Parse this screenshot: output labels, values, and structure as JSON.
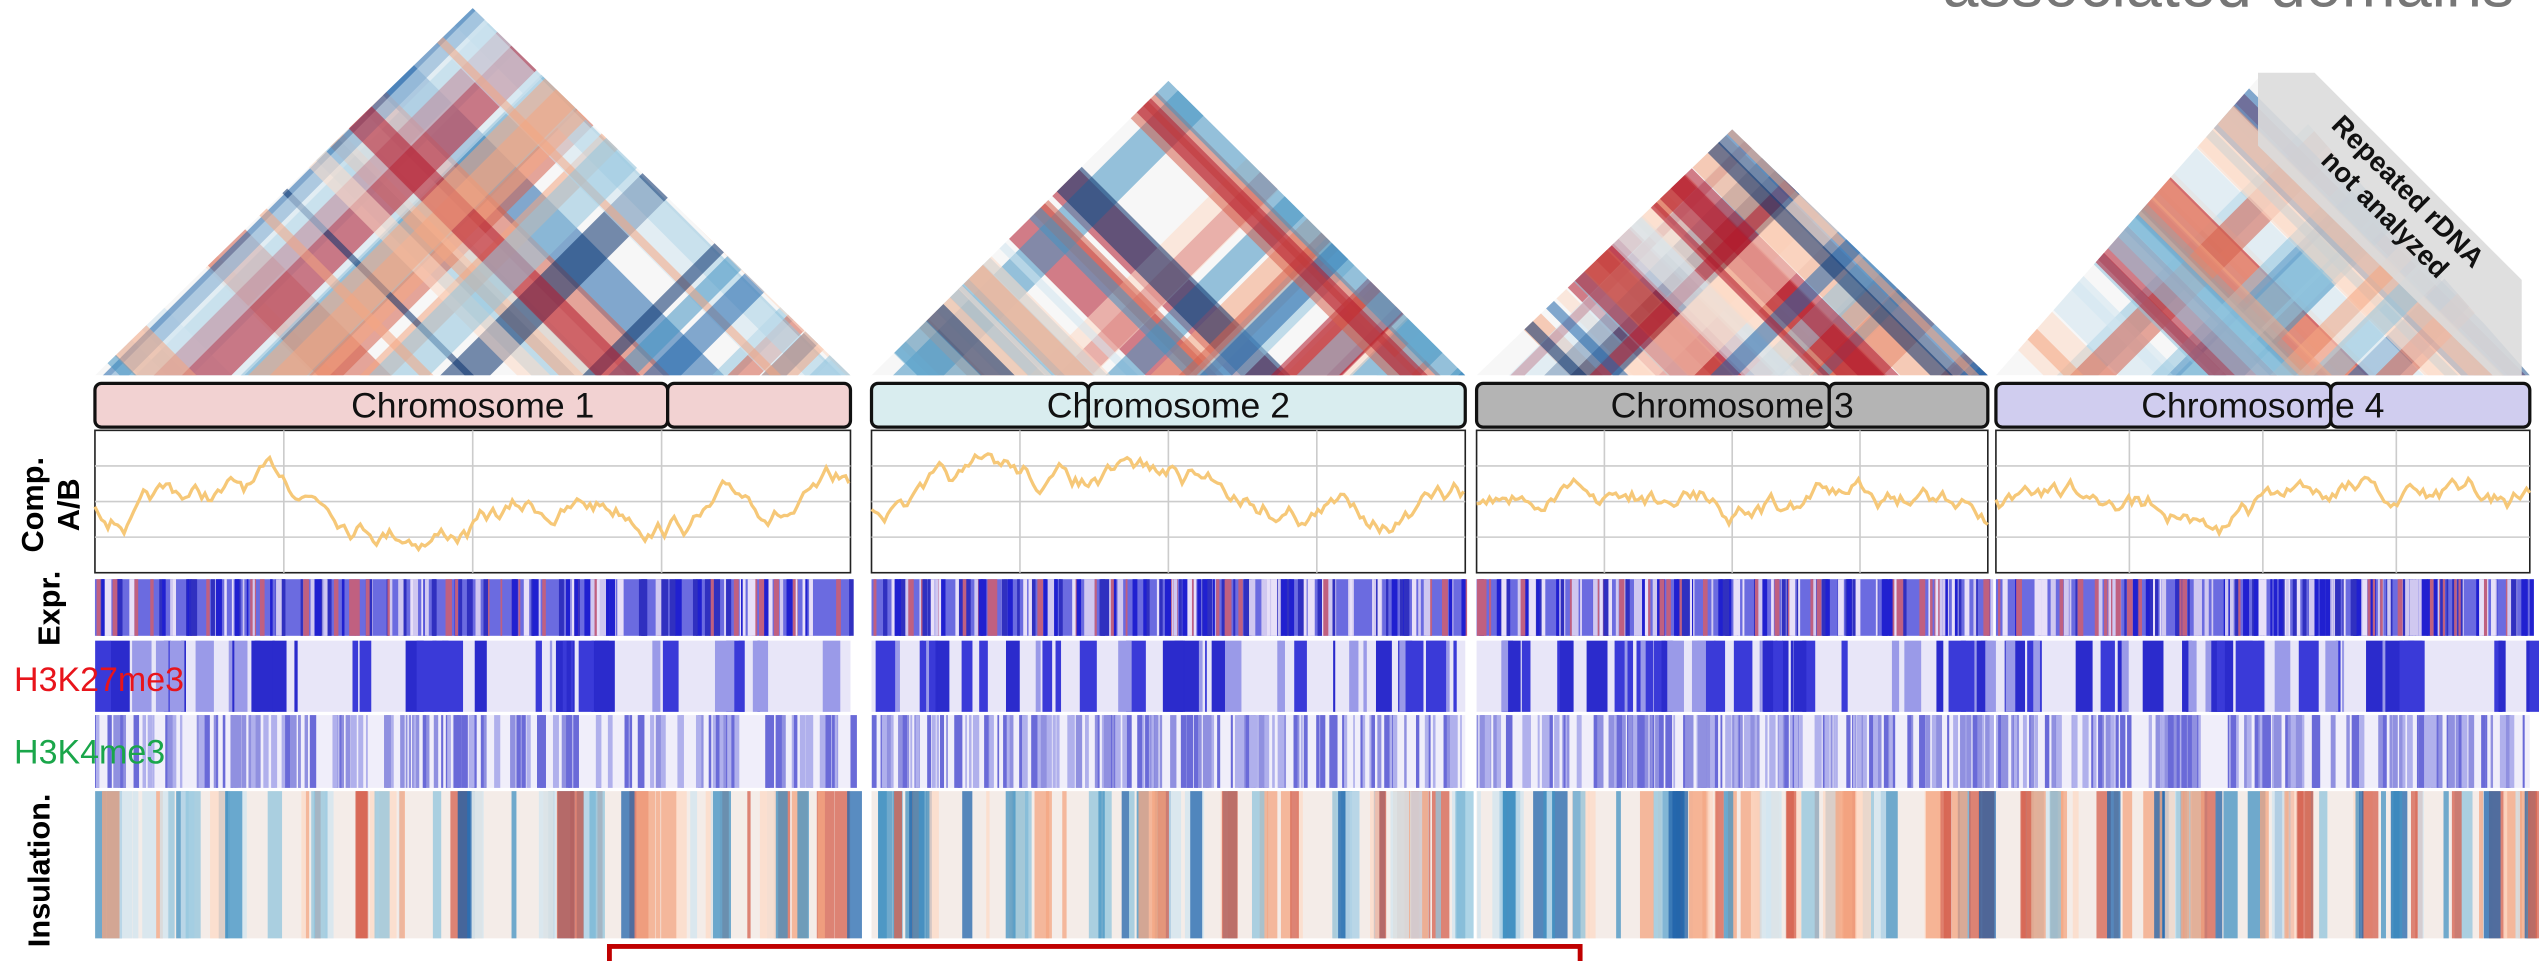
{
  "header": {
    "title_fragment": "associated domains"
  },
  "panels": [
    {
      "label": "Chromosome 1"
    },
    {
      "label": "Chromosome 2"
    },
    {
      "label": "Chromosome 3"
    },
    {
      "label": "Chromosome 4"
    }
  ],
  "tracks": {
    "compartment": [
      "Comp.",
      "A/B"
    ],
    "expression": "Expr.",
    "h3k27me3": "H3K27me3",
    "h3k4me3": "H3K4me3",
    "insulation": "Insulation."
  },
  "annotation": [
    "Repeated rDNA",
    "not analyzed"
  ]
}
